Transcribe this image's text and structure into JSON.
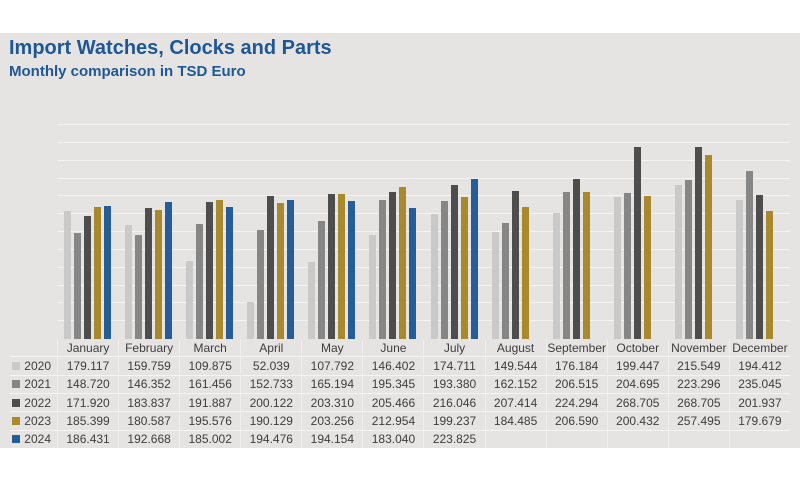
{
  "header": {
    "title": "Import Watches, Clocks and Parts",
    "subtitle": "Monthly comparison in TSD Euro",
    "title_color": "#1d5795"
  },
  "panel_background": "#e6e4e3",
  "chart_data": {
    "type": "bar",
    "title": "Import Watches, Clocks and Parts",
    "subtitle": "Monthly comparison in TSD Euro",
    "unit": "TSD Euro",
    "categories": [
      "January",
      "February",
      "March",
      "April",
      "May",
      "June",
      "July",
      "August",
      "September",
      "October",
      "November",
      "December"
    ],
    "series": [
      {
        "name": "2020",
        "color": "#c9c9c9",
        "values": [
          "179.117",
          "159.759",
          "109.875",
          "52.039",
          "107.792",
          "146.402",
          "174.711",
          "149.544",
          "176.184",
          "199.447",
          "215.549",
          "194.412"
        ]
      },
      {
        "name": "2021",
        "color": "#868686",
        "values": [
          "148.720",
          "146.352",
          "161.456",
          "152.733",
          "165.194",
          "195.345",
          "193.380",
          "162.152",
          "206.515",
          "204.695",
          "223.296",
          "235.045"
        ]
      },
      {
        "name": "2022",
        "color": "#4d4d4d",
        "values": [
          "171.920",
          "183.837",
          "191.887",
          "200.122",
          "203.310",
          "205.466",
          "216.046",
          "207.414",
          "224.294",
          "268.705",
          "268.705",
          "201.937"
        ]
      },
      {
        "name": "2023",
        "color": "#a8892e",
        "values": [
          "185.399",
          "180.587",
          "195.576",
          "190.129",
          "203.256",
          "212.954",
          "199.237",
          "184.485",
          "206.590",
          "200.432",
          "257.495",
          "179.679"
        ]
      },
      {
        "name": "2024",
        "color": "#275d96",
        "values": [
          "186.431",
          "192.668",
          "185.002",
          "194.476",
          "194.154",
          "183.040",
          "223.825",
          null,
          null,
          null,
          null,
          null
        ]
      }
    ],
    "ylim": [
      0,
      300
    ],
    "gridline_step": 25,
    "grid": true,
    "legend_position": "table-row-headers",
    "y_axis_labels_visible": false
  }
}
